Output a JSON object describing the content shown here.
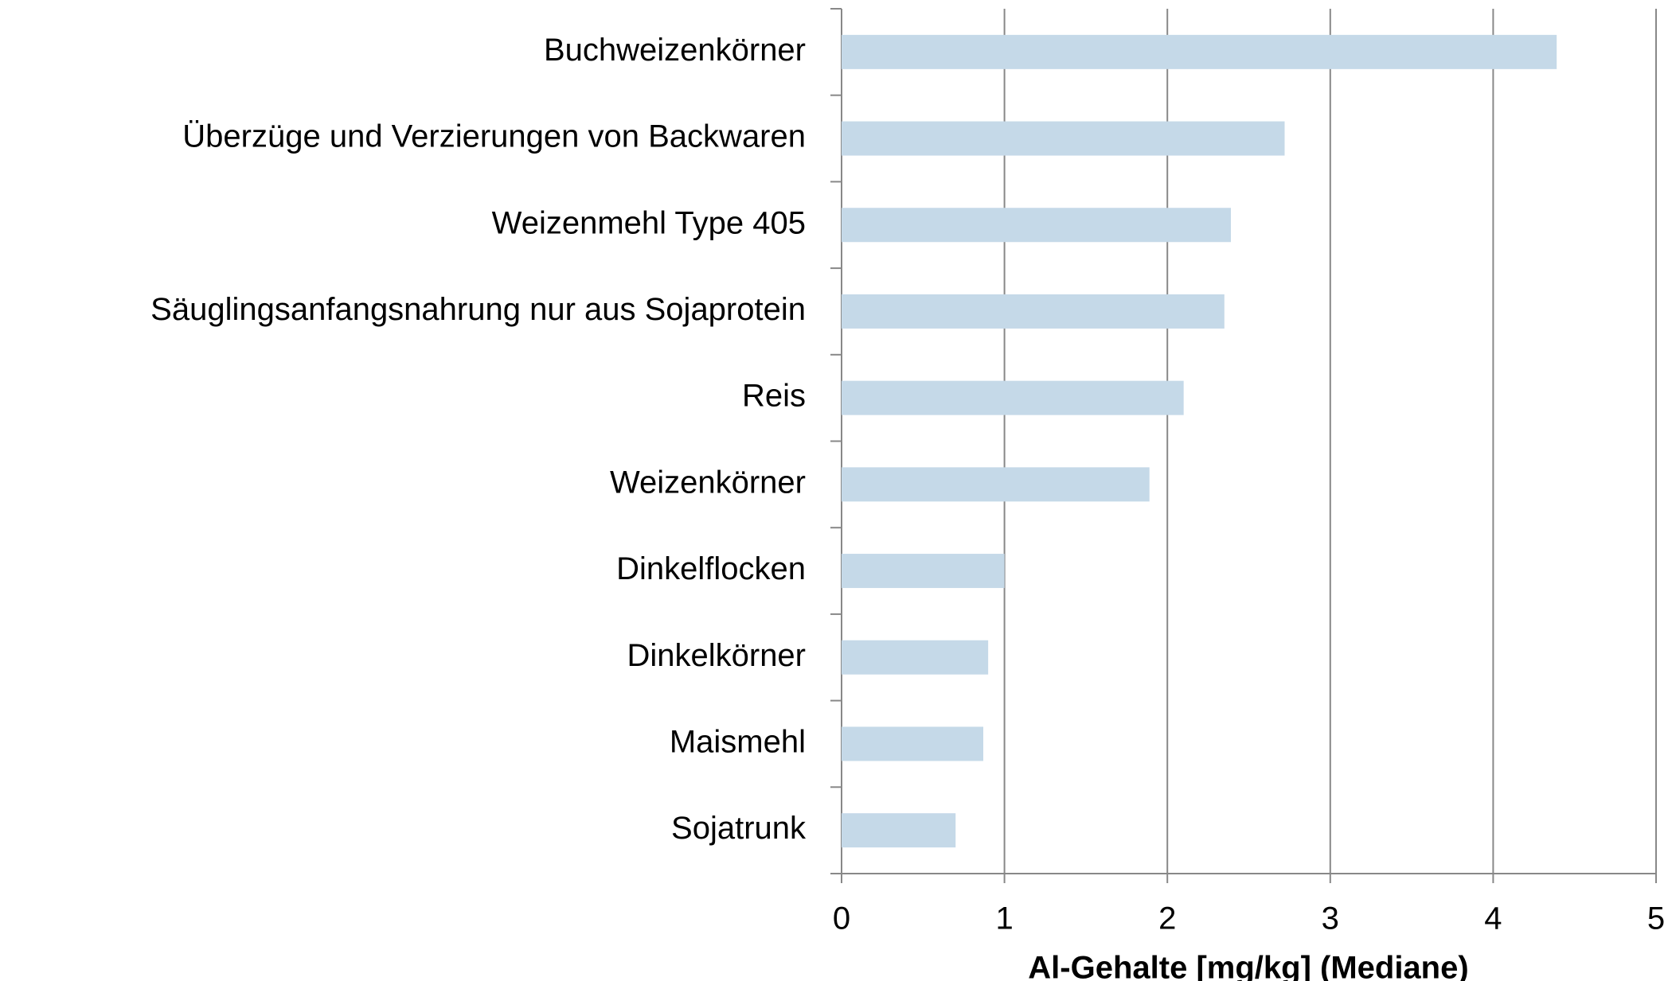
{
  "chart_data": {
    "type": "bar",
    "orientation": "horizontal",
    "categories": [
      "Buchweizenkörner",
      "Überzüge und Verzierungen von Backwaren",
      "Weizenmehl Type 405",
      "Säuglingsanfangsnahrung nur aus Sojaprotein",
      "Reis",
      "Weizenkörner",
      "Dinkelflocken",
      "Dinkelkörner",
      "Maismehl",
      "Sojatrunk"
    ],
    "values": [
      4.39,
      2.72,
      2.39,
      2.35,
      2.1,
      1.89,
      1.0,
      0.9,
      0.87,
      0.7
    ],
    "color": "#c5d9e8",
    "xlim": [
      0,
      5
    ],
    "xticks": [
      0,
      1,
      2,
      3,
      4,
      5
    ],
    "xlabel": "Al-Gehalte [mg/kg] (Mediane)",
    "grid": true
  }
}
